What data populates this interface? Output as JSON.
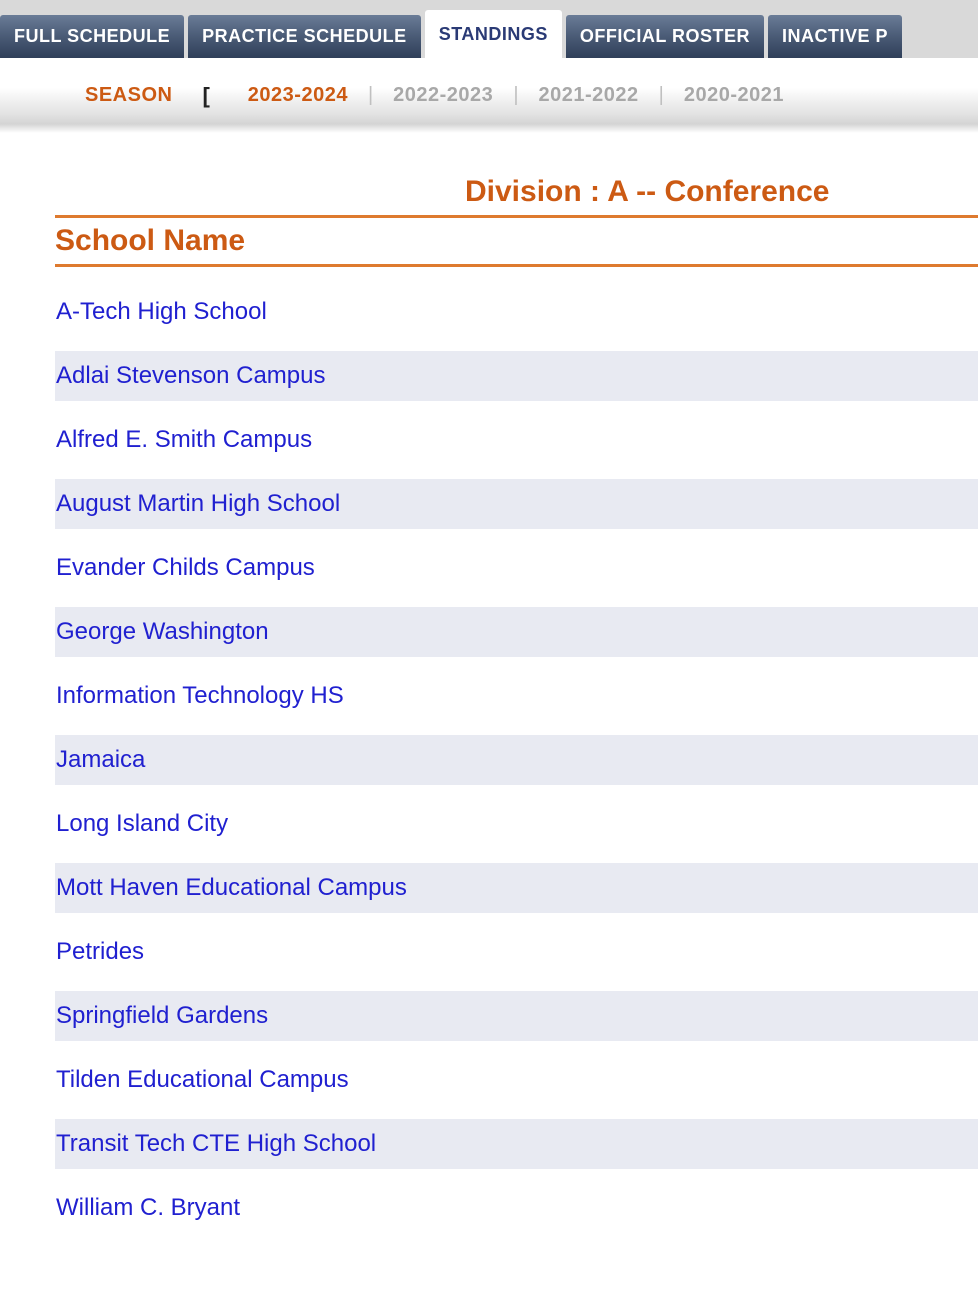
{
  "nav": {
    "tabs": [
      {
        "label": "FULL SCHEDULE",
        "active": false
      },
      {
        "label": "PRACTICE SCHEDULE",
        "active": false
      },
      {
        "label": "STANDINGS",
        "active": true
      },
      {
        "label": "OFFICIAL ROSTER",
        "active": false
      },
      {
        "label": "INACTIVE P",
        "active": false
      }
    ]
  },
  "season_selector": {
    "label": "SEASON",
    "bracket": "[",
    "seasons": [
      {
        "label": "2023-2024",
        "active": true
      },
      {
        "label": "2022-2023",
        "active": false
      },
      {
        "label": "2021-2022",
        "active": false
      },
      {
        "label": "2020-2021",
        "active": false
      }
    ],
    "separator": "|"
  },
  "division_title": "Division :  A -- Conference",
  "table": {
    "header": "School Name",
    "rows": [
      {
        "name": "A-Tech High School"
      },
      {
        "name": "Adlai Stevenson Campus"
      },
      {
        "name": "Alfred E. Smith Campus"
      },
      {
        "name": "August Martin High School"
      },
      {
        "name": "Evander Childs Campus"
      },
      {
        "name": "George Washington"
      },
      {
        "name": "Information Technology HS"
      },
      {
        "name": "Jamaica"
      },
      {
        "name": "Long Island City"
      },
      {
        "name": "Mott Haven Educational Campus"
      },
      {
        "name": "Petrides"
      },
      {
        "name": "Springfield Gardens"
      },
      {
        "name": "Tilden Educational Campus"
      },
      {
        "name": "Transit Tech CTE High School"
      },
      {
        "name": "William C. Bryant"
      }
    ]
  },
  "colors": {
    "tab_active_text": "#2a3a75",
    "season_active": "#cc5a13",
    "season_inactive": "#a8a8a8",
    "division_title": "#cc5a13",
    "table_border": "#de7a2f",
    "link": "#2020d0",
    "row_alt": "#e8eaf2"
  }
}
